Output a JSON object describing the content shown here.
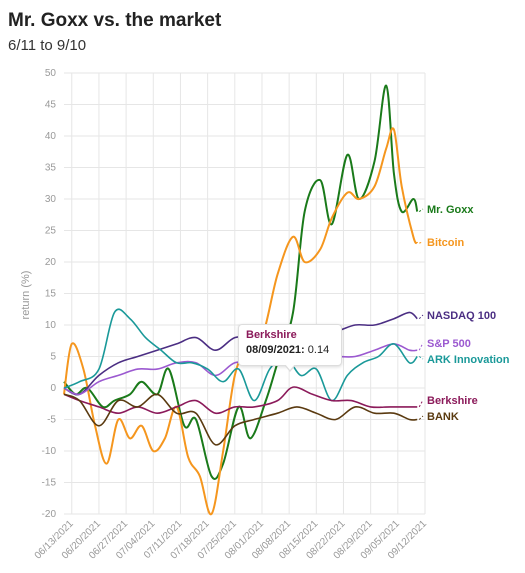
{
  "header": {
    "title": "Mr. Goxx vs. the market",
    "subtitle": "6/11 to 9/10"
  },
  "chart_data": {
    "type": "line",
    "ylabel": "return (%)",
    "xlabel": "",
    "ylim": [
      -20,
      50
    ],
    "yticks": [
      50,
      45,
      40,
      35,
      30,
      25,
      20,
      15,
      10,
      5,
      0,
      -5,
      -10,
      -15,
      -20
    ],
    "xlim": [
      "2021-06-11",
      "2021-09-12"
    ],
    "xticks": [
      "06/13/2021",
      "06/20/2021",
      "06/27/2021",
      "07/04/2021",
      "07/11/2021",
      "07/18/2021",
      "07/25/2021",
      "08/01/2021",
      "08/08/2021",
      "08/15/2021",
      "08/22/2021",
      "08/29/2021",
      "09/05/2021",
      "09/12/2021"
    ],
    "grid": true,
    "series": [
      {
        "name": "Mr. Goxx",
        "color": "#1a7a1a",
        "x": [
          "2021-06-11",
          "2021-06-14",
          "2021-06-17",
          "2021-06-21",
          "2021-06-24",
          "2021-06-28",
          "2021-07-01",
          "2021-07-05",
          "2021-07-08",
          "2021-07-12",
          "2021-07-15",
          "2021-07-19",
          "2021-07-22",
          "2021-07-26",
          "2021-07-29",
          "2021-08-02",
          "2021-08-05",
          "2021-08-09",
          "2021-08-12",
          "2021-08-16",
          "2021-08-19",
          "2021-08-23",
          "2021-08-26",
          "2021-08-30",
          "2021-09-02",
          "2021-09-04",
          "2021-09-06",
          "2021-09-09",
          "2021-09-10"
        ],
        "y": [
          1,
          -1,
          0,
          -3,
          -2,
          -1,
          1,
          -1,
          3,
          -6,
          -5,
          -14,
          -12,
          -3,
          -8,
          -2,
          4,
          12,
          28,
          33,
          26,
          37,
          30,
          36,
          48,
          34,
          28,
          30,
          28
        ]
      },
      {
        "name": "Bitcoin",
        "color": "#f5961e",
        "x": [
          "2021-06-11",
          "2021-06-13",
          "2021-06-16",
          "2021-06-19",
          "2021-06-22",
          "2021-06-25",
          "2021-06-28",
          "2021-07-01",
          "2021-07-04",
          "2021-07-07",
          "2021-07-10",
          "2021-07-13",
          "2021-07-16",
          "2021-07-19",
          "2021-07-22",
          "2021-07-25",
          "2021-07-28",
          "2021-08-01",
          "2021-08-05",
          "2021-08-09",
          "2021-08-12",
          "2021-08-16",
          "2021-08-19",
          "2021-08-23",
          "2021-08-26",
          "2021-08-30",
          "2021-09-02",
          "2021-09-04",
          "2021-09-06",
          "2021-09-09",
          "2021-09-10"
        ],
        "y": [
          -1,
          7,
          3,
          -6,
          -12,
          -5,
          -8,
          -6,
          -10,
          -8,
          -3,
          -11,
          -14,
          -20,
          -10,
          2,
          6,
          8,
          18,
          24,
          20,
          22,
          27,
          31,
          30,
          32,
          38,
          41,
          32,
          24,
          23
        ]
      },
      {
        "name": "NASDAQ 100",
        "color": "#4b2e83",
        "x": [
          "2021-06-11",
          "2021-06-15",
          "2021-06-20",
          "2021-06-25",
          "2021-06-30",
          "2021-07-05",
          "2021-07-10",
          "2021-07-15",
          "2021-07-20",
          "2021-07-25",
          "2021-07-30",
          "2021-08-05",
          "2021-08-10",
          "2021-08-15",
          "2021-08-20",
          "2021-08-25",
          "2021-08-30",
          "2021-09-04",
          "2021-09-08",
          "2021-09-10"
        ],
        "y": [
          0,
          -1,
          2,
          4,
          5,
          6,
          7,
          8,
          6,
          8,
          8,
          8,
          9,
          9,
          9,
          10,
          10,
          11,
          12,
          11
        ]
      },
      {
        "name": "S&P 500",
        "color": "#9b59d0",
        "x": [
          "2021-06-11",
          "2021-06-15",
          "2021-06-20",
          "2021-06-25",
          "2021-06-30",
          "2021-07-05",
          "2021-07-10",
          "2021-07-15",
          "2021-07-20",
          "2021-07-25",
          "2021-07-30",
          "2021-08-05",
          "2021-08-10",
          "2021-08-15",
          "2021-08-20",
          "2021-08-25",
          "2021-08-30",
          "2021-09-04",
          "2021-09-08",
          "2021-09-10"
        ],
        "y": [
          0,
          -1,
          1,
          2,
          3,
          3,
          4,
          4,
          2,
          4,
          4,
          4,
          5,
          5,
          5,
          5,
          6,
          7,
          6,
          6
        ]
      },
      {
        "name": "ARK Innovation",
        "color": "#1a9999",
        "x": [
          "2021-06-11",
          "2021-06-15",
          "2021-06-20",
          "2021-06-24",
          "2021-06-28",
          "2021-07-02",
          "2021-07-06",
          "2021-07-10",
          "2021-07-14",
          "2021-07-18",
          "2021-07-22",
          "2021-07-26",
          "2021-07-30",
          "2021-08-03",
          "2021-08-07",
          "2021-08-11",
          "2021-08-15",
          "2021-08-19",
          "2021-08-23",
          "2021-08-27",
          "2021-08-31",
          "2021-09-04",
          "2021-09-08",
          "2021-09-10"
        ],
        "y": [
          0,
          1,
          3,
          12,
          11,
          8,
          6,
          4,
          4,
          3,
          1,
          3,
          -2,
          3,
          5,
          2,
          3,
          -2,
          2,
          4,
          5,
          7,
          4,
          5
        ]
      },
      {
        "name": "Berkshire",
        "color": "#8b1a5a",
        "x": [
          "2021-06-11",
          "2021-06-15",
          "2021-06-20",
          "2021-06-25",
          "2021-06-30",
          "2021-07-05",
          "2021-07-10",
          "2021-07-15",
          "2021-07-20",
          "2021-07-25",
          "2021-07-30",
          "2021-08-05",
          "2021-08-09",
          "2021-08-14",
          "2021-08-19",
          "2021-08-24",
          "2021-08-29",
          "2021-09-03",
          "2021-09-08",
          "2021-09-10"
        ],
        "y": [
          -1,
          -2,
          -3,
          -4,
          -3,
          -4,
          -3,
          -2,
          -4,
          -3,
          -3,
          -2,
          0.14,
          -1,
          -2,
          -2,
          -3,
          -3,
          -3,
          -3
        ]
      },
      {
        "name": "BANK",
        "color": "#5a3a10",
        "x": [
          "2021-06-11",
          "2021-06-15",
          "2021-06-20",
          "2021-06-25",
          "2021-06-30",
          "2021-07-05",
          "2021-07-10",
          "2021-07-15",
          "2021-07-20",
          "2021-07-25",
          "2021-07-30",
          "2021-08-05",
          "2021-08-10",
          "2021-08-15",
          "2021-08-20",
          "2021-08-25",
          "2021-08-30",
          "2021-09-04",
          "2021-09-08",
          "2021-09-10"
        ],
        "y": [
          -1,
          -2,
          -6,
          -2,
          -3,
          -1,
          -4,
          -4,
          -9,
          -6,
          -5,
          -4,
          -3,
          -4,
          -5,
          -3,
          -4,
          -4,
          -5,
          -5
        ]
      }
    ],
    "tooltip": {
      "series": "Berkshire",
      "date": "08/09/2021:",
      "value": "0.14"
    }
  }
}
